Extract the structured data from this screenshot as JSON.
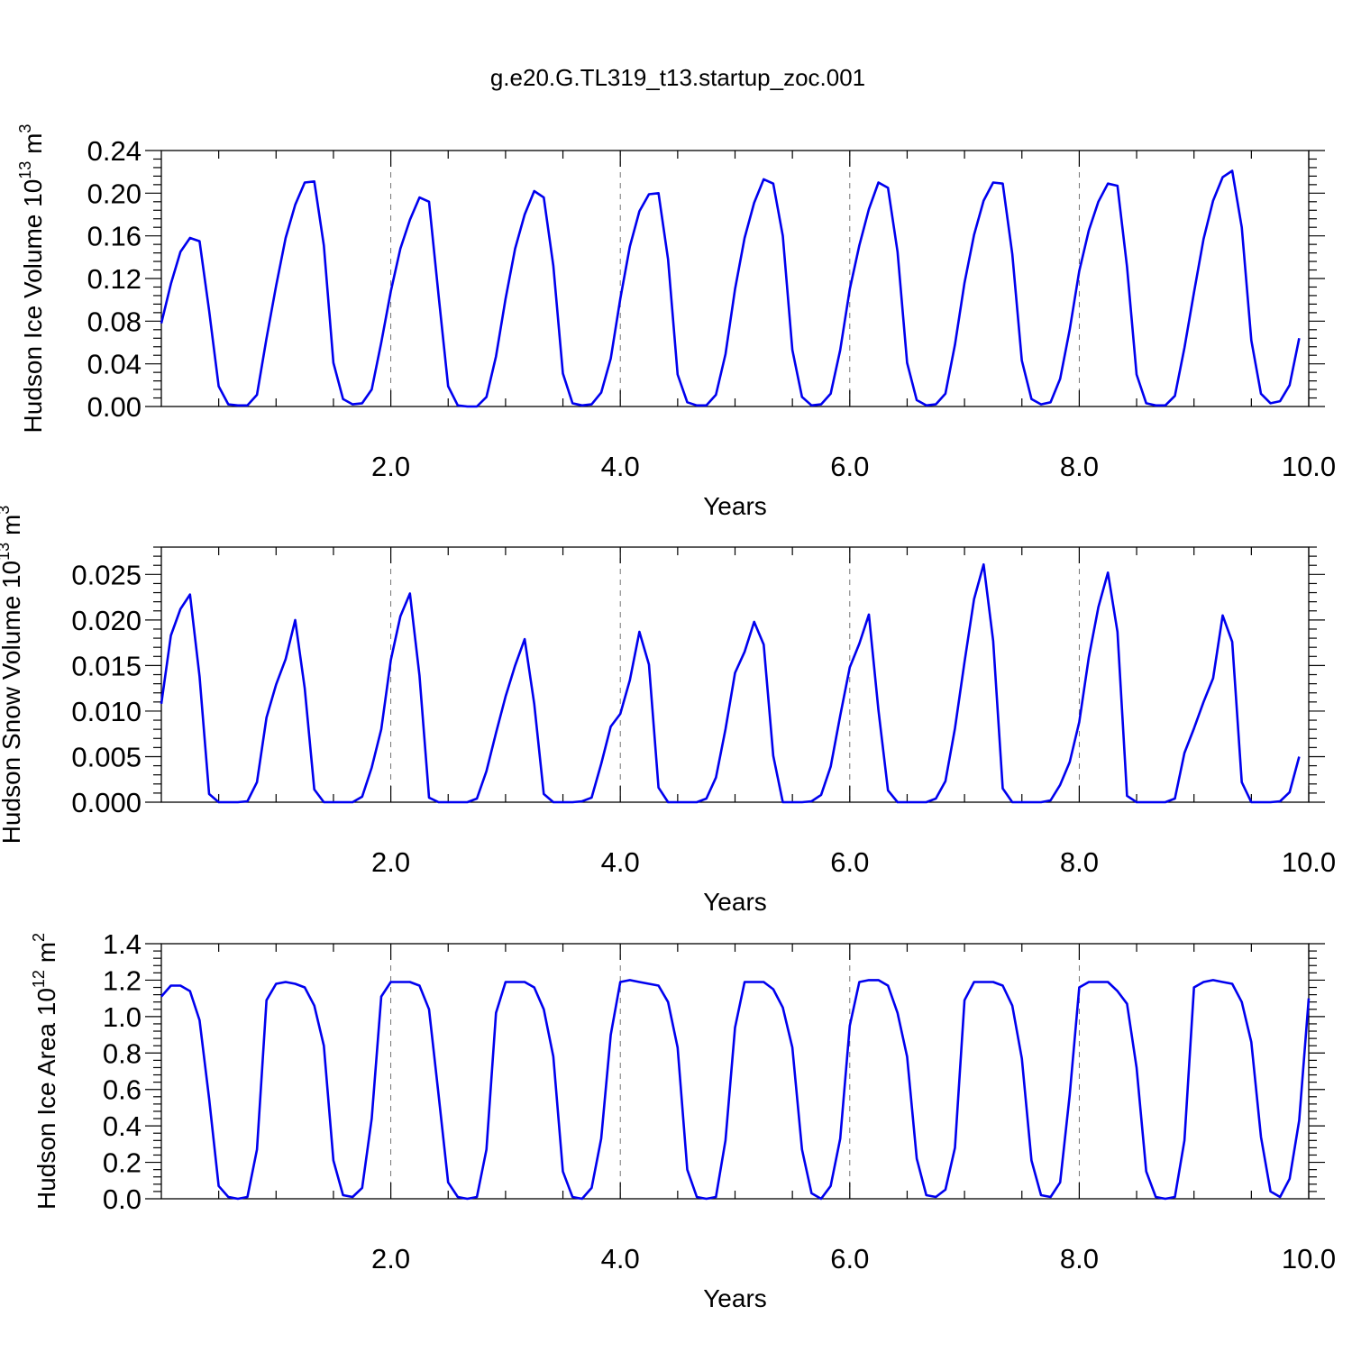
{
  "title": "g.e20.G.TL319_t13.startup_zoc.001",
  "colors": {
    "line": "#0000ee",
    "axis": "#000000",
    "grid": "#666666"
  },
  "chart_data": [
    {
      "type": "line",
      "xlabel": "Years",
      "ylabel": "Hudson Ice Volume 10",
      "ylabel_exp": "13",
      "ylabel_unit": " m",
      "ylabel_unit_exp": "3",
      "xlim": [
        0.0,
        10.0
      ],
      "ylim": [
        0.0,
        0.24
      ],
      "xticks": [
        2.0,
        4.0,
        6.0,
        8.0,
        10.0
      ],
      "xticklabels": [
        "2.0",
        "4.0",
        "6.0",
        "8.0",
        "10.0"
      ],
      "yticks": [
        0.0,
        0.04,
        0.08,
        0.12,
        0.16,
        0.2,
        0.24
      ],
      "yticklabels": [
        "0.00",
        "0.04",
        "0.08",
        "0.12",
        "0.16",
        "0.20",
        "0.24"
      ],
      "grid_x": [
        2.0,
        4.0,
        6.0,
        8.0
      ],
      "series": [
        {
          "x_start": 0.0,
          "x_step": 0.0833333,
          "values": [
            0.078,
            0.115,
            0.145,
            0.158,
            0.155,
            0.09,
            0.019,
            0.002,
            0.001,
            0.001,
            0.011,
            0.064,
            0.113,
            0.158,
            0.189,
            0.21,
            0.211,
            0.151,
            0.041,
            0.007,
            0.002,
            0.003,
            0.016,
            0.06,
            0.108,
            0.148,
            0.175,
            0.196,
            0.192,
            0.104,
            0.019,
            0.001,
            0.0,
            0.0,
            0.009,
            0.047,
            0.101,
            0.148,
            0.18,
            0.202,
            0.196,
            0.132,
            0.031,
            0.003,
            0.001,
            0.002,
            0.013,
            0.045,
            0.101,
            0.15,
            0.183,
            0.199,
            0.2,
            0.138,
            0.03,
            0.004,
            0.001,
            0.001,
            0.011,
            0.049,
            0.11,
            0.158,
            0.191,
            0.213,
            0.209,
            0.16,
            0.053,
            0.009,
            0.001,
            0.002,
            0.012,
            0.053,
            0.11,
            0.151,
            0.185,
            0.21,
            0.205,
            0.145,
            0.041,
            0.006,
            0.001,
            0.002,
            0.012,
            0.058,
            0.116,
            0.161,
            0.193,
            0.21,
            0.209,
            0.143,
            0.043,
            0.007,
            0.002,
            0.004,
            0.026,
            0.072,
            0.127,
            0.165,
            0.192,
            0.209,
            0.207,
            0.131,
            0.03,
            0.003,
            0.001,
            0.001,
            0.01,
            0.055,
            0.107,
            0.157,
            0.193,
            0.215,
            0.221,
            0.168,
            0.062,
            0.012,
            0.003,
            0.005,
            0.02,
            0.064
          ]
        }
      ]
    },
    {
      "type": "line",
      "xlabel": "Years",
      "ylabel": "Hudson Snow Volume 10",
      "ylabel_exp": "13",
      "ylabel_unit": " m",
      "ylabel_unit_exp": "3",
      "xlim": [
        0.0,
        10.0
      ],
      "ylim": [
        0.0,
        0.028
      ],
      "xticks": [
        2.0,
        4.0,
        6.0,
        8.0,
        10.0
      ],
      "xticklabels": [
        "2.0",
        "4.0",
        "6.0",
        "8.0",
        "10.0"
      ],
      "yticks": [
        0.0,
        0.005,
        0.01,
        0.015,
        0.02,
        0.025
      ],
      "yticklabels": [
        "0.000",
        "0.005",
        "0.010",
        "0.015",
        "0.020",
        "0.025"
      ],
      "grid_x": [
        2.0,
        4.0,
        6.0,
        8.0
      ],
      "series": [
        {
          "x_start": 0.0,
          "x_step": 0.0833333,
          "values": [
            0.0108,
            0.0183,
            0.0212,
            0.0228,
            0.0138,
            0.0009,
            0.0,
            0.0,
            0.0,
            0.0001,
            0.0022,
            0.0093,
            0.0129,
            0.0157,
            0.02,
            0.0125,
            0.0014,
            0.0,
            0.0,
            0.0,
            0.0,
            0.0006,
            0.0038,
            0.008,
            0.0156,
            0.0204,
            0.0229,
            0.0139,
            0.0005,
            0.0,
            0.0,
            0.0,
            0.0,
            0.0004,
            0.0034,
            0.0076,
            0.0116,
            0.015,
            0.0179,
            0.0108,
            0.0009,
            0.0,
            0.0,
            0.0,
            0.0001,
            0.0005,
            0.0042,
            0.0083,
            0.0097,
            0.0134,
            0.0187,
            0.0151,
            0.0016,
            0.0,
            0.0,
            0.0,
            0.0,
            0.0004,
            0.0027,
            0.008,
            0.0142,
            0.0165,
            0.0198,
            0.0173,
            0.0051,
            0.0,
            0.0,
            0.0,
            0.0001,
            0.0008,
            0.0039,
            0.0095,
            0.0148,
            0.0174,
            0.0206,
            0.0101,
            0.0013,
            0.0,
            0.0,
            0.0,
            0.0,
            0.0004,
            0.0023,
            0.0081,
            0.0154,
            0.0223,
            0.0261,
            0.0177,
            0.0015,
            0.0,
            0.0,
            0.0,
            0.0,
            0.0002,
            0.0019,
            0.0044,
            0.0088,
            0.0159,
            0.0214,
            0.0252,
            0.0187,
            0.0007,
            0.0,
            0.0,
            0.0,
            0.0,
            0.0004,
            0.0054,
            0.0081,
            0.011,
            0.0136,
            0.0205,
            0.0176,
            0.0022,
            0.0,
            0.0,
            0.0,
            0.0001,
            0.0011,
            0.005
          ]
        }
      ]
    },
    {
      "type": "line",
      "xlabel": "Years",
      "ylabel": "Hudson Ice Area 10",
      "ylabel_exp": "12",
      "ylabel_unit": " m",
      "ylabel_unit_exp": "2",
      "xlim": [
        0.0,
        10.0
      ],
      "ylim": [
        0.0,
        1.4
      ],
      "xticks": [
        2.0,
        4.0,
        6.0,
        8.0,
        10.0
      ],
      "xticklabels": [
        "2.0",
        "4.0",
        "6.0",
        "8.0",
        "10.0"
      ],
      "yticks": [
        0.0,
        0.2,
        0.4,
        0.6,
        0.8,
        1.0,
        1.2,
        1.4
      ],
      "yticklabels": [
        "0.0",
        "0.2",
        "0.4",
        "0.6",
        "0.8",
        "1.0",
        "1.2",
        "1.4"
      ],
      "grid_x": [
        2.0,
        4.0,
        6.0,
        8.0
      ],
      "series": [
        {
          "x_start": 0.0,
          "x_step": 0.0833333,
          "values": [
            1.11,
            1.17,
            1.17,
            1.14,
            0.98,
            0.55,
            0.07,
            0.01,
            0.0,
            0.01,
            0.27,
            1.09,
            1.18,
            1.19,
            1.18,
            1.16,
            1.06,
            0.84,
            0.21,
            0.02,
            0.01,
            0.06,
            0.44,
            1.11,
            1.19,
            1.19,
            1.19,
            1.17,
            1.04,
            0.57,
            0.09,
            0.01,
            0.0,
            0.01,
            0.27,
            1.02,
            1.19,
            1.19,
            1.19,
            1.16,
            1.04,
            0.78,
            0.15,
            0.01,
            0.0,
            0.06,
            0.33,
            0.9,
            1.19,
            1.2,
            1.19,
            1.18,
            1.17,
            1.08,
            0.83,
            0.16,
            0.01,
            0.0,
            0.01,
            0.32,
            0.94,
            1.19,
            1.19,
            1.19,
            1.15,
            1.05,
            0.83,
            0.27,
            0.03,
            0.0,
            0.07,
            0.33,
            0.95,
            1.19,
            1.2,
            1.2,
            1.17,
            1.02,
            0.78,
            0.22,
            0.02,
            0.01,
            0.05,
            0.28,
            1.09,
            1.19,
            1.19,
            1.19,
            1.17,
            1.06,
            0.77,
            0.21,
            0.02,
            0.01,
            0.09,
            0.57,
            1.16,
            1.19,
            1.19,
            1.19,
            1.14,
            1.07,
            0.72,
            0.15,
            0.01,
            0.0,
            0.01,
            0.32,
            1.16,
            1.19,
            1.2,
            1.19,
            1.18,
            1.08,
            0.86,
            0.34,
            0.04,
            0.01,
            0.11,
            0.43,
            1.1
          ]
        }
      ]
    }
  ]
}
